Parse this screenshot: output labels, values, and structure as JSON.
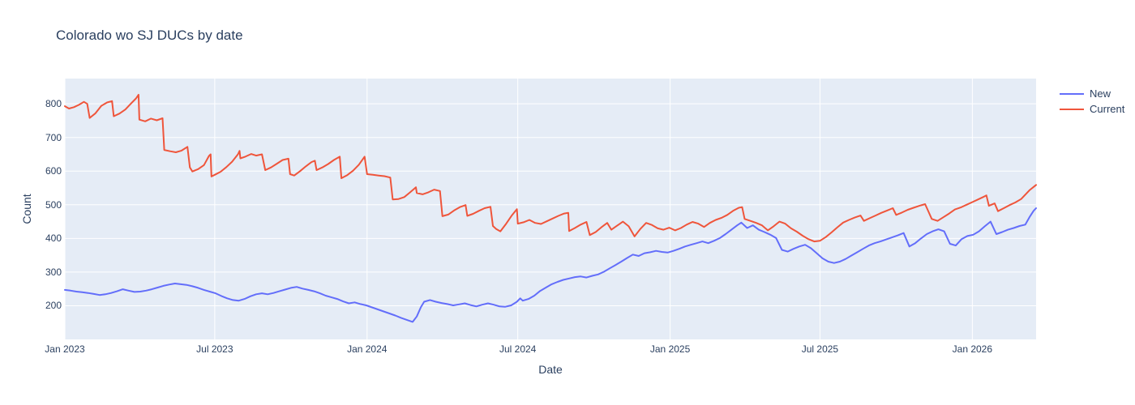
{
  "page": {
    "background_color": "#ffffff"
  },
  "chart_data": {
    "type": "line",
    "title": "Colorado wo SJ DUCs by date",
    "xlabel": "Date",
    "ylabel": "Count",
    "x_unit": "days_since_2023-01-01",
    "xlim": [
      0,
      1173
    ],
    "ylim": [
      100,
      875
    ],
    "grid": true,
    "plot_bgcolor": "#e5ecf6",
    "gridcolor": "#ffffff",
    "text_color": "#2a3f5f",
    "legend_position": "outside-top-right",
    "x_ticks": [
      {
        "day": 0,
        "label": "Jan 2023"
      },
      {
        "day": 181,
        "label": "Jul 2023"
      },
      {
        "day": 365,
        "label": "Jan 2024"
      },
      {
        "day": 547,
        "label": "Jul 2024"
      },
      {
        "day": 731,
        "label": "Jan 2025"
      },
      {
        "day": 912,
        "label": "Jul 2025"
      },
      {
        "day": 1096,
        "label": "Jan 2026"
      }
    ],
    "y_ticks": [
      200,
      300,
      400,
      500,
      600,
      700,
      800
    ],
    "series": [
      {
        "name": "New",
        "color": "#636efa",
        "x": [
          0,
          7,
          14,
          21,
          28,
          35,
          42,
          49,
          56,
          63,
          70,
          77,
          84,
          91,
          98,
          105,
          112,
          119,
          126,
          133,
          140,
          147,
          154,
          161,
          168,
          175,
          182,
          189,
          196,
          203,
          210,
          217,
          224,
          231,
          238,
          245,
          252,
          259,
          266,
          273,
          280,
          287,
          294,
          301,
          308,
          315,
          322,
          329,
          336,
          343,
          350,
          357,
          364,
          371,
          378,
          385,
          392,
          399,
          406,
          413,
          420,
          425,
          430,
          434,
          441,
          448,
          455,
          462,
          469,
          476,
          483,
          490,
          497,
          504,
          511,
          518,
          525,
          532,
          539,
          546,
          550,
          553,
          560,
          567,
          574,
          581,
          588,
          595,
          602,
          609,
          616,
          623,
          630,
          637,
          644,
          651,
          658,
          665,
          672,
          679,
          686,
          693,
          700,
          707,
          714,
          721,
          728,
          735,
          742,
          749,
          756,
          763,
          770,
          777,
          784,
          791,
          798,
          805,
          812,
          817,
          824,
          831,
          838,
          845,
          852,
          859,
          866,
          873,
          880,
          887,
          894,
          901,
          908,
          915,
          922,
          929,
          936,
          943,
          950,
          957,
          964,
          971,
          978,
          985,
          992,
          999,
          1006,
          1013,
          1020,
          1027,
          1034,
          1041,
          1048,
          1055,
          1062,
          1069,
          1076,
          1083,
          1090,
          1097,
          1104,
          1111,
          1118,
          1125,
          1132,
          1139,
          1146,
          1153,
          1160,
          1165,
          1170,
          1173
        ],
        "y": [
          247,
          245,
          242,
          240,
          238,
          235,
          232,
          234,
          238,
          243,
          249,
          245,
          241,
          242,
          245,
          249,
          254,
          259,
          263,
          266,
          264,
          262,
          258,
          253,
          247,
          242,
          237,
          229,
          222,
          217,
          215,
          220,
          228,
          234,
          237,
          234,
          238,
          243,
          248,
          253,
          256,
          251,
          247,
          243,
          237,
          230,
          225,
          220,
          213,
          207,
          210,
          205,
          201,
          195,
          189,
          183,
          177,
          171,
          164,
          158,
          152,
          168,
          196,
          212,
          217,
          212,
          208,
          205,
          201,
          204,
          207,
          202,
          198,
          203,
          207,
          203,
          198,
          197,
          201,
          212,
          222,
          215,
          220,
          230,
          244,
          254,
          264,
          271,
          277,
          281,
          285,
          287,
          284,
          289,
          293,
          301,
          311,
          321,
          331,
          342,
          352,
          348,
          356,
          359,
          363,
          360,
          358,
          363,
          369,
          376,
          381,
          386,
          391,
          386,
          393,
          401,
          413,
          426,
          439,
          447,
          431,
          439,
          426,
          419,
          411,
          401,
          366,
          361,
          369,
          376,
          381,
          371,
          356,
          341,
          331,
          327,
          331,
          339,
          349,
          359,
          369,
          379,
          386,
          391,
          397,
          403,
          409,
          416,
          376,
          386,
          400,
          413,
          421,
          427,
          421,
          384,
          379,
          398,
          407,
          411,
          421,
          436,
          450,
          413,
          419,
          426,
          431,
          437,
          441,
          463,
          482,
          490
        ]
      },
      {
        "name": "Current",
        "color": "#ef553b",
        "x": [
          0,
          5,
          11,
          17,
          23,
          27,
          30,
          37,
          44,
          51,
          57,
          59,
          66,
          73,
          80,
          86,
          89,
          90,
          97,
          104,
          111,
          118,
          120,
          127,
          134,
          141,
          148,
          151,
          154,
          161,
          168,
          174,
          176,
          177,
          181,
          188,
          195,
          202,
          209,
          211,
          212,
          218,
          225,
          231,
          238,
          242,
          249,
          256,
          263,
          270,
          272,
          277,
          284,
          291,
          298,
          302,
          304,
          311,
          318,
          325,
          332,
          334,
          341,
          348,
          355,
          362,
          365,
          372,
          379,
          386,
          393,
          396,
          403,
          410,
          417,
          424,
          425,
          432,
          439,
          446,
          453,
          456,
          463,
          470,
          477,
          484,
          486,
          493,
          500,
          507,
          514,
          517,
          521,
          526,
          533,
          540,
          546,
          547,
          554,
          561,
          568,
          575,
          582,
          589,
          596,
          603,
          608,
          609,
          616,
          623,
          630,
          634,
          641,
          648,
          655,
          660,
          667,
          674,
          681,
          688,
          695,
          702,
          709,
          716,
          723,
          730,
          737,
          744,
          751,
          758,
          765,
          772,
          779,
          786,
          793,
          800,
          807,
          814,
          818,
          821,
          828,
          835,
          842,
          849,
          856,
          863,
          870,
          877,
          884,
          891,
          898,
          905,
          912,
          919,
          926,
          933,
          940,
          947,
          954,
          961,
          965,
          972,
          979,
          986,
          993,
          1000,
          1004,
          1011,
          1018,
          1025,
          1032,
          1039,
          1047,
          1054,
          1061,
          1068,
          1075,
          1082,
          1089,
          1096,
          1103,
          1110,
          1113,
          1116,
          1123,
          1127,
          1134,
          1141,
          1148,
          1155,
          1160,
          1165,
          1170,
          1173
        ],
        "y": [
          793,
          786,
          790,
          797,
          806,
          800,
          758,
          772,
          794,
          804,
          808,
          763,
          771,
          783,
          801,
          816,
          827,
          753,
          748,
          756,
          751,
          757,
          663,
          659,
          656,
          661,
          672,
          611,
          599,
          606,
          618,
          645,
          650,
          584,
          589,
          598,
          612,
          628,
          650,
          660,
          638,
          643,
          651,
          646,
          650,
          603,
          611,
          622,
          633,
          637,
          591,
          587,
          600,
          614,
          627,
          631,
          603,
          611,
          621,
          633,
          643,
          579,
          588,
          601,
          619,
          643,
          591,
          589,
          587,
          585,
          581,
          516,
          517,
          523,
          537,
          552,
          535,
          531,
          537,
          545,
          541,
          466,
          471,
          483,
          493,
          499,
          467,
          473,
          482,
          490,
          494,
          437,
          428,
          421,
          444,
          469,
          487,
          444,
          448,
          455,
          446,
          443,
          451,
          459,
          467,
          474,
          476,
          422,
          431,
          441,
          449,
          410,
          419,
          433,
          446,
          426,
          438,
          450,
          436,
          406,
          428,
          446,
          440,
          430,
          426,
          432,
          424,
          431,
          441,
          449,
          444,
          434,
          446,
          455,
          461,
          470,
          482,
          491,
          493,
          458,
          452,
          446,
          439,
          424,
          436,
          450,
          444,
          430,
          420,
          408,
          398,
          391,
          393,
          404,
          418,
          433,
          447,
          455,
          462,
          468,
          452,
          460,
          468,
          476,
          483,
          490,
          470,
          477,
          485,
          491,
          497,
          502,
          458,
          452,
          463,
          474,
          486,
          492,
          500,
          508,
          516,
          524,
          528,
          497,
          504,
          481,
          490,
          499,
          507,
          517,
          530,
          543,
          553,
          559
        ]
      }
    ]
  }
}
